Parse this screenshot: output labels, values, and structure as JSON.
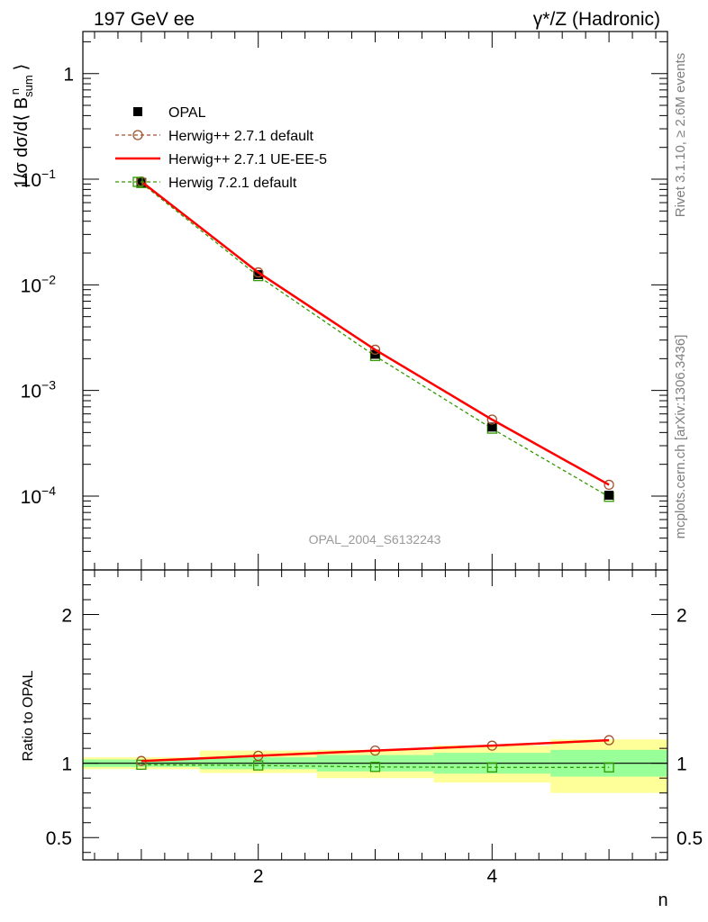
{
  "header": {
    "left": "197 GeV ee",
    "right": "γ*/Z (Hadronic)"
  },
  "side_text": {
    "rivet": "Rivet 3.1.10, ≥ 2.6M events",
    "mcplots": "mcplots.cern.ch [arXiv:1306.3436]"
  },
  "watermark": "OPAL_2004_S6132243",
  "chart_data": [
    {
      "type": "line",
      "title": "",
      "ylabel": "1/σ dσ/d⟨ B_sum^n ⟩",
      "xlabel": "",
      "y_scale": "log",
      "xlim": [
        0.5,
        5.5
      ],
      "ylim": [
        2e-05,
        2.5
      ],
      "y_ticks": [
        {
          "value": 1,
          "label": "1"
        },
        {
          "value": 0.1,
          "label": "10",
          "exp": "−1"
        },
        {
          "value": 0.01,
          "label": "10",
          "exp": "−2"
        },
        {
          "value": 0.001,
          "label": "10",
          "exp": "−3"
        },
        {
          "value": 0.0001,
          "label": "10",
          "exp": "−4"
        }
      ],
      "legend_position": "top-left",
      "x": [
        1,
        2,
        3,
        4,
        5
      ],
      "series": [
        {
          "name": "OPAL",
          "values": [
            0.093,
            0.0125,
            0.0022,
            0.00045,
            0.000102
          ],
          "color": "#000000",
          "style": "marker-square-filled"
        },
        {
          "name": "Herwig++ 2.7.1 default",
          "values": [
            0.095,
            0.0131,
            0.00243,
            0.00053,
            0.000128
          ],
          "color": "#a0522d",
          "style": "dashed-circle"
        },
        {
          "name": "Herwig++ 2.7.1 UE-EE-5",
          "values": [
            0.095,
            0.0131,
            0.00243,
            0.00053,
            0.000128
          ],
          "color": "#ff0000",
          "style": "solid"
        },
        {
          "name": "Herwig 7.2.1 default",
          "values": [
            0.092,
            0.0121,
            0.00212,
            0.000435,
            9.85e-05
          ],
          "color": "#339900",
          "style": "dashed-square-open"
        }
      ]
    },
    {
      "type": "line",
      "title": "",
      "ylabel": "Ratio to OPAL",
      "xlabel": "n",
      "xlim": [
        0.5,
        5.5
      ],
      "ylim": [
        0.35,
        2.3
      ],
      "x_ticks": [
        2,
        4
      ],
      "y_ticks": [
        {
          "value": 0.5,
          "label": "0.5"
        },
        {
          "value": 1,
          "label": "1"
        },
        {
          "value": 2,
          "label": "2"
        }
      ],
      "bands": [
        {
          "x0": 0.5,
          "x1": 1.5,
          "green": [
            0.975,
            1.025
          ],
          "yellow": [
            0.96,
            1.04
          ]
        },
        {
          "x0": 1.5,
          "x1": 2.5,
          "green": [
            0.96,
            1.04
          ],
          "yellow": [
            0.935,
            1.085
          ]
        },
        {
          "x0": 2.5,
          "x1": 3.5,
          "green": [
            0.945,
            1.055
          ],
          "yellow": [
            0.9,
            1.09
          ]
        },
        {
          "x0": 3.5,
          "x1": 4.5,
          "green": [
            0.93,
            1.07
          ],
          "yellow": [
            0.87,
            1.12
          ]
        },
        {
          "x0": 4.5,
          "x1": 5.5,
          "green": [
            0.91,
            1.09
          ],
          "yellow": [
            0.8,
            1.16
          ]
        }
      ],
      "x": [
        1,
        2,
        3,
        4,
        5
      ],
      "series": [
        {
          "name": "Herwig++ 2.7.1 default",
          "values": [
            1.015,
            1.05,
            1.085,
            1.118,
            1.155
          ],
          "color": "#a0522d",
          "style": "dashed-circle"
        },
        {
          "name": "Herwig++ 2.7.1 UE-EE-5",
          "values": [
            1.015,
            1.05,
            1.085,
            1.118,
            1.155
          ],
          "color": "#ff0000",
          "style": "solid"
        },
        {
          "name": "Herwig 7.2.1 default",
          "values": [
            0.99,
            0.985,
            0.975,
            0.972,
            0.972
          ],
          "color": "#339900",
          "style": "dashed-square-open"
        }
      ]
    }
  ]
}
